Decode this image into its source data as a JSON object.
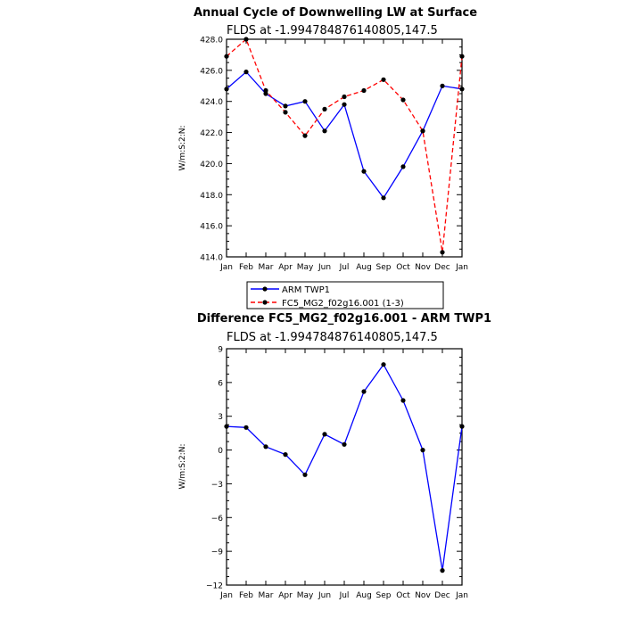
{
  "colors": {
    "arm": "#0000ff",
    "model": "#ff0000",
    "marker": "#000000",
    "axis": "#000000"
  },
  "chart_data": [
    {
      "type": "line",
      "title": "Annual Cycle of Downwelling LW at Surface",
      "subtitle": "FLDS at -1.994784876140805,147.5",
      "ylabel": "W/m:S:2:N:",
      "categories": [
        "Jan",
        "Feb",
        "Mar",
        "Apr",
        "May",
        "Jun",
        "Jul",
        "Aug",
        "Sep",
        "Oct",
        "Nov",
        "Dec",
        "Jan"
      ],
      "ylim": [
        414.0,
        428.0
      ],
      "yticks": [
        "414.0",
        "416.0",
        "418.0",
        "420.0",
        "422.0",
        "424.0",
        "426.0",
        "428.0"
      ],
      "series": [
        {
          "name": "ARM TWP1",
          "color": "#0000ff",
          "dash": "solid",
          "values": [
            424.8,
            425.9,
            424.5,
            423.7,
            424.0,
            422.1,
            423.8,
            419.5,
            417.8,
            419.8,
            422.1,
            425.0,
            424.8
          ]
        },
        {
          "name": "FC5_MG2_f02g16.001 (1-3)",
          "color": "#ff0000",
          "dash": "dashed",
          "values": [
            426.9,
            428.0,
            424.7,
            423.3,
            421.8,
            423.5,
            424.3,
            424.7,
            425.4,
            424.1,
            422.1,
            414.3,
            426.9
          ]
        }
      ],
      "legend": "below"
    },
    {
      "type": "line",
      "title": "Difference FC5_MG2_f02g16.001 - ARM TWP1",
      "subtitle": "FLDS at -1.994784876140805,147.5",
      "ylabel": "W/m:S:2:N:",
      "categories": [
        "Jan",
        "Feb",
        "Mar",
        "Apr",
        "May",
        "Jun",
        "Jul",
        "Aug",
        "Sep",
        "Oct",
        "Nov",
        "Dec",
        "Jan"
      ],
      "ylim": [
        -12,
        9
      ],
      "yticks": [
        "−12",
        "−9",
        "−6",
        "−3",
        "0",
        "3",
        "6",
        "9"
      ],
      "series": [
        {
          "name": "",
          "color": "#0000ff",
          "dash": "solid",
          "values": [
            2.1,
            2.0,
            0.3,
            -0.4,
            -2.2,
            1.4,
            0.5,
            5.2,
            7.6,
            4.4,
            0.0,
            -10.7,
            2.1
          ]
        }
      ]
    }
  ]
}
